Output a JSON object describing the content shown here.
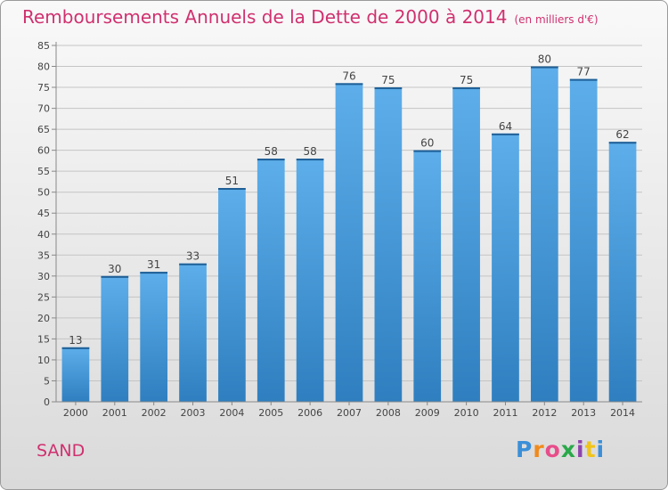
{
  "header": {
    "title": "Remboursements Annuels de la Dette de 2000 à 2014",
    "unit": "(en milliers d'€)"
  },
  "footer": {
    "town": "SAND",
    "brand": "Proxiti"
  },
  "colors": {
    "title": "#d0306f",
    "bar_top": "#5daeea",
    "bar_bottom": "#2f7fc0",
    "grid": "#c4c4c4",
    "axis": "#888888"
  },
  "chart_data": {
    "type": "bar",
    "title": "Remboursements Annuels de la Dette de 2000 à 2014",
    "xlabel": "",
    "ylabel": "",
    "categories": [
      "2000",
      "2001",
      "2002",
      "2003",
      "2004",
      "2005",
      "2006",
      "2007",
      "2008",
      "2009",
      "2010",
      "2011",
      "2012",
      "2013",
      "2014"
    ],
    "values": [
      13,
      30,
      31,
      33,
      51,
      58,
      58,
      76,
      75,
      60,
      75,
      64,
      80,
      77,
      62
    ],
    "ylim": [
      0,
      85
    ],
    "yticks": [
      0,
      5,
      10,
      15,
      20,
      25,
      30,
      35,
      40,
      45,
      50,
      55,
      60,
      65,
      70,
      75,
      80,
      85
    ],
    "grid": true
  }
}
